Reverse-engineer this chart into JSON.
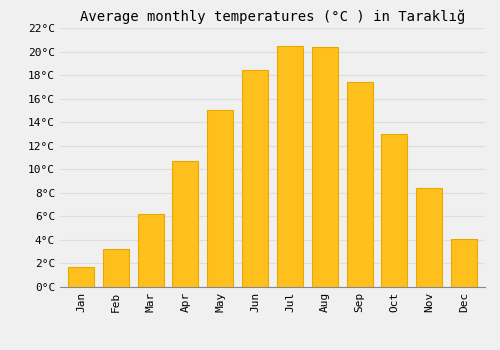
{
  "title": "Average monthly temperatures (°C ) in Taraklığ",
  "months": [
    "Jan",
    "Feb",
    "Mar",
    "Apr",
    "May",
    "Jun",
    "Jul",
    "Aug",
    "Sep",
    "Oct",
    "Nov",
    "Dec"
  ],
  "values": [
    1.7,
    3.2,
    6.2,
    10.7,
    15.0,
    18.4,
    20.5,
    20.4,
    17.4,
    13.0,
    8.4,
    4.1
  ],
  "bar_color": "#FFC01E",
  "bar_edge_color": "#E8A800",
  "background_color": "#F0F0F0",
  "grid_color": "#DDDDDD",
  "ylim": [
    0,
    22
  ],
  "yticks": [
    0,
    2,
    4,
    6,
    8,
    10,
    12,
    14,
    16,
    18,
    20,
    22
  ],
  "title_fontsize": 10,
  "tick_fontsize": 8,
  "font_family": "monospace"
}
